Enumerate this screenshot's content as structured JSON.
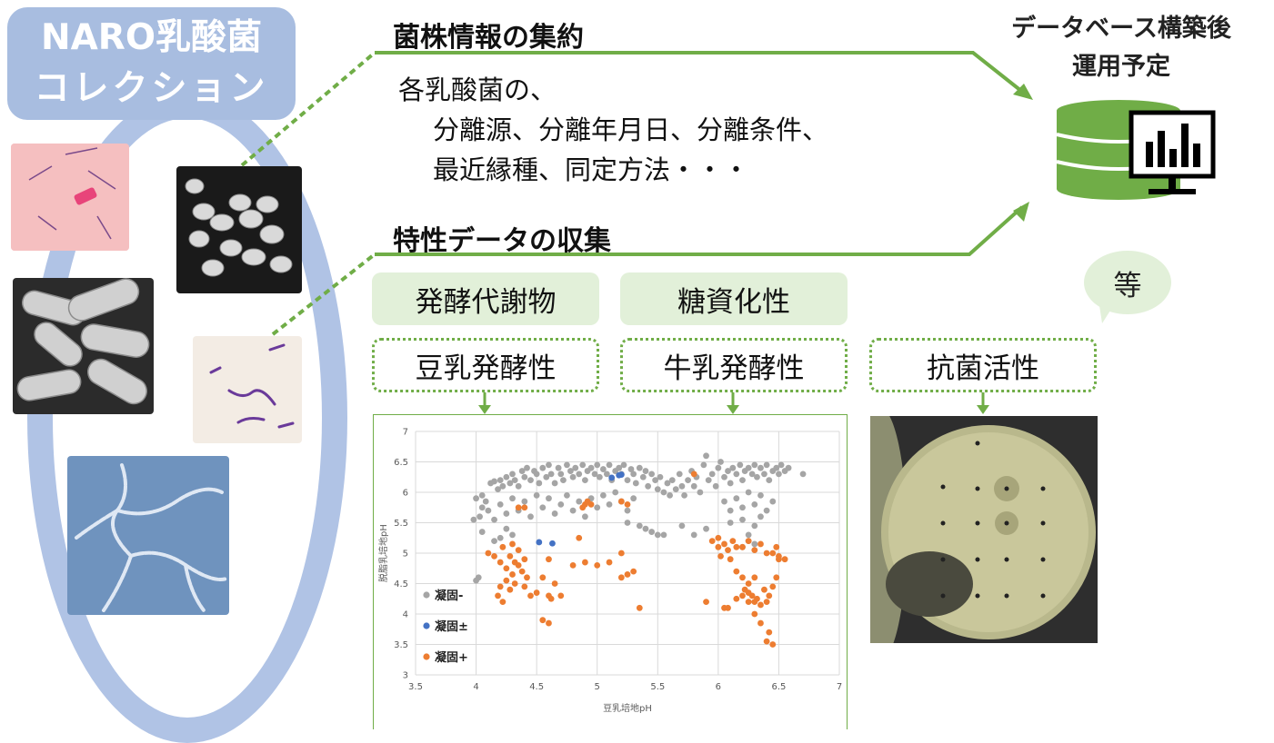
{
  "collection": {
    "line1": "NARO乳酸菌",
    "line2": "コレクション"
  },
  "strain_info": {
    "heading": "菌株情報の集約",
    "line1": "各乳酸菌の、",
    "line2": "分離源、分離年月日、分離条件、",
    "line3": "最近縁種、同定方法・・・"
  },
  "characteristics": {
    "heading": "特性データの収集",
    "solid_chips": [
      "発酵代謝物",
      "糖資化性"
    ],
    "dotted_chips": [
      "豆乳発酵性",
      "牛乳発酵性",
      "抗菌活性"
    ],
    "etc_bubble": "等"
  },
  "database": {
    "line1": "データベース構築後",
    "line2": "運用予定"
  },
  "colors": {
    "green": "#70ad47",
    "light_green": "#e2f0d9",
    "blue_band": "#a8bde0",
    "gray_series": "#a5a5a5",
    "blue_series": "#4472c4",
    "orange_series": "#ed7d31"
  },
  "chart_data": {
    "type": "scatter",
    "xlabel": "豆乳培地pH",
    "ylabel": "脱脂乳培地pH",
    "xlim": [
      3.5,
      7
    ],
    "ylim": [
      3,
      7
    ],
    "x_ticks": [
      "3.5",
      "4",
      "4.5",
      "5",
      "5.5",
      "6",
      "6.5",
      "7"
    ],
    "y_ticks": [
      "3",
      "3.5",
      "4",
      "4.5",
      "5",
      "5.5",
      "6",
      "6.5",
      "7"
    ],
    "grid": true,
    "legend_position": "left",
    "series": [
      {
        "name": "凝固-",
        "color": "#a5a5a5",
        "points": [
          [
            4.0,
            4.55
          ],
          [
            4.02,
            4.6
          ],
          [
            4.0,
            5.9
          ],
          [
            4.03,
            5.6
          ],
          [
            4.05,
            5.75
          ],
          [
            3.98,
            5.55
          ],
          [
            4.05,
            5.95
          ],
          [
            4.08,
            5.85
          ],
          [
            4.12,
            6.15
          ],
          [
            4.15,
            6.18
          ],
          [
            4.18,
            6.05
          ],
          [
            4.2,
            6.2
          ],
          [
            4.22,
            6.1
          ],
          [
            4.25,
            6.25
          ],
          [
            4.28,
            6.15
          ],
          [
            4.3,
            6.3
          ],
          [
            4.32,
            6.2
          ],
          [
            4.35,
            6.1
          ],
          [
            4.38,
            6.35
          ],
          [
            4.4,
            6.25
          ],
          [
            4.42,
            6.4
          ],
          [
            4.45,
            6.2
          ],
          [
            4.48,
            6.35
          ],
          [
            4.5,
            6.3
          ],
          [
            4.52,
            6.15
          ],
          [
            4.55,
            6.4
          ],
          [
            4.58,
            6.25
          ],
          [
            4.6,
            6.45
          ],
          [
            4.62,
            6.3
          ],
          [
            4.65,
            6.15
          ],
          [
            4.68,
            6.4
          ],
          [
            4.7,
            6.3
          ],
          [
            4.72,
            6.2
          ],
          [
            4.75,
            6.45
          ],
          [
            4.78,
            6.35
          ],
          [
            4.8,
            6.25
          ],
          [
            4.82,
            6.4
          ],
          [
            4.85,
            6.3
          ],
          [
            4.88,
            6.45
          ],
          [
            4.9,
            6.2
          ],
          [
            4.92,
            6.35
          ],
          [
            4.95,
            6.4
          ],
          [
            4.98,
            6.3
          ],
          [
            5.0,
            6.45
          ],
          [
            5.02,
            6.25
          ],
          [
            5.05,
            6.38
          ],
          [
            5.08,
            6.3
          ],
          [
            5.1,
            6.45
          ],
          [
            5.12,
            6.2
          ],
          [
            5.15,
            6.35
          ],
          [
            5.18,
            6.4
          ],
          [
            5.2,
            6.3
          ],
          [
            5.22,
            6.45
          ],
          [
            5.25,
            6.2
          ],
          [
            5.28,
            6.38
          ],
          [
            5.3,
            6.3
          ],
          [
            5.32,
            6.15
          ],
          [
            5.35,
            6.4
          ],
          [
            5.38,
            6.25
          ],
          [
            5.4,
            6.35
          ],
          [
            5.42,
            6.1
          ],
          [
            5.45,
            6.3
          ],
          [
            5.48,
            6.2
          ],
          [
            5.5,
            6.05
          ],
          [
            5.52,
            6.25
          ],
          [
            5.55,
            6.0
          ],
          [
            5.58,
            6.15
          ],
          [
            5.6,
            5.95
          ],
          [
            5.62,
            6.2
          ],
          [
            5.65,
            6.05
          ],
          [
            5.68,
            6.3
          ],
          [
            5.7,
            6.1
          ],
          [
            5.72,
            5.95
          ],
          [
            5.75,
            6.2
          ],
          [
            5.78,
            6.35
          ],
          [
            5.8,
            6.1
          ],
          [
            5.82,
            6.25
          ],
          [
            5.85,
            6.0
          ],
          [
            5.88,
            6.45
          ],
          [
            5.9,
            6.6
          ],
          [
            5.92,
            6.2
          ],
          [
            5.95,
            6.3
          ],
          [
            5.98,
            6.1
          ],
          [
            6.0,
            6.4
          ],
          [
            6.02,
            6.5
          ],
          [
            6.05,
            6.25
          ],
          [
            6.08,
            6.35
          ],
          [
            6.1,
            6.15
          ],
          [
            6.12,
            6.4
          ],
          [
            6.15,
            6.3
          ],
          [
            6.18,
            6.45
          ],
          [
            6.2,
            6.2
          ],
          [
            6.22,
            6.35
          ],
          [
            6.25,
            6.4
          ],
          [
            6.28,
            6.3
          ],
          [
            6.3,
            6.45
          ],
          [
            6.32,
            6.25
          ],
          [
            6.35,
            6.4
          ],
          [
            6.38,
            6.3
          ],
          [
            6.4,
            6.45
          ],
          [
            6.42,
            6.2
          ],
          [
            6.45,
            6.35
          ],
          [
            6.48,
            6.4
          ],
          [
            6.5,
            6.3
          ],
          [
            6.52,
            6.45
          ],
          [
            6.55,
            6.35
          ],
          [
            6.58,
            6.4
          ],
          [
            6.7,
            6.3
          ],
          [
            4.1,
            5.7
          ],
          [
            4.15,
            5.55
          ],
          [
            4.2,
            5.8
          ],
          [
            4.25,
            5.65
          ],
          [
            4.3,
            5.9
          ],
          [
            4.35,
            5.7
          ],
          [
            4.4,
            5.85
          ],
          [
            4.45,
            5.6
          ],
          [
            4.5,
            5.95
          ],
          [
            4.55,
            5.75
          ],
          [
            4.6,
            5.9
          ],
          [
            4.65,
            5.65
          ],
          [
            4.7,
            5.8
          ],
          [
            4.75,
            5.95
          ],
          [
            4.8,
            5.7
          ],
          [
            4.85,
            5.85
          ],
          [
            4.9,
            5.6
          ],
          [
            4.95,
            5.9
          ],
          [
            5.0,
            5.75
          ],
          [
            5.05,
            5.95
          ],
          [
            5.1,
            5.8
          ],
          [
            5.15,
            6.0
          ],
          [
            5.2,
            5.85
          ],
          [
            5.25,
            5.7
          ],
          [
            5.3,
            5.9
          ],
          [
            5.35,
            5.45
          ],
          [
            5.4,
            5.4
          ],
          [
            5.45,
            5.35
          ],
          [
            5.5,
            5.3
          ],
          [
            5.55,
            5.3
          ],
          [
            5.25,
            5.5
          ],
          [
            5.7,
            5.45
          ],
          [
            5.8,
            5.3
          ],
          [
            5.9,
            5.4
          ],
          [
            6.05,
            5.85
          ],
          [
            6.1,
            5.7
          ],
          [
            6.15,
            5.9
          ],
          [
            6.2,
            5.75
          ],
          [
            6.25,
            6.0
          ],
          [
            6.3,
            5.8
          ],
          [
            6.35,
            5.95
          ],
          [
            6.4,
            5.7
          ],
          [
            6.45,
            5.85
          ],
          [
            6.2,
            5.55
          ],
          [
            6.25,
            5.3
          ],
          [
            6.3,
            5.45
          ],
          [
            6.35,
            5.6
          ],
          [
            6.1,
            5.5
          ],
          [
            6.2,
            5.1
          ],
          [
            6.25,
            5.2
          ],
          [
            6.3,
            5.15
          ],
          [
            4.2,
            5.25
          ],
          [
            4.25,
            5.4
          ],
          [
            4.3,
            5.3
          ],
          [
            4.15,
            5.2
          ],
          [
            4.05,
            5.35
          ]
        ]
      },
      {
        "name": "凝固±",
        "color": "#4472c4",
        "points": [
          [
            4.52,
            5.18
          ],
          [
            4.63,
            5.16
          ],
          [
            5.12,
            6.24
          ],
          [
            5.18,
            6.28
          ],
          [
            5.2,
            6.29
          ]
        ]
      },
      {
        "name": "凝固+",
        "color": "#ed7d31",
        "points": [
          [
            4.1,
            5.0
          ],
          [
            4.15,
            4.95
          ],
          [
            4.2,
            4.85
          ],
          [
            4.22,
            5.1
          ],
          [
            4.25,
            4.75
          ],
          [
            4.28,
            4.95
          ],
          [
            4.3,
            4.65
          ],
          [
            4.32,
            4.85
          ],
          [
            4.35,
            5.05
          ],
          [
            4.38,
            4.7
          ],
          [
            4.4,
            4.9
          ],
          [
            4.42,
            4.6
          ],
          [
            4.3,
            5.15
          ],
          [
            4.32,
            4.5
          ],
          [
            4.35,
            4.8
          ],
          [
            4.28,
            4.4
          ],
          [
            4.25,
            4.55
          ],
          [
            4.4,
            4.45
          ],
          [
            4.2,
            4.45
          ],
          [
            4.18,
            4.3
          ],
          [
            4.22,
            4.2
          ],
          [
            4.45,
            4.3
          ],
          [
            4.5,
            4.35
          ],
          [
            4.55,
            4.6
          ],
          [
            4.6,
            4.9
          ],
          [
            4.6,
            4.3
          ],
          [
            4.62,
            4.25
          ],
          [
            4.65,
            4.5
          ],
          [
            4.7,
            4.3
          ],
          [
            4.55,
            3.9
          ],
          [
            4.6,
            3.85
          ],
          [
            4.8,
            4.8
          ],
          [
            4.85,
            5.25
          ],
          [
            4.9,
            4.85
          ],
          [
            5.0,
            4.8
          ],
          [
            5.2,
            5.0
          ],
          [
            5.25,
            4.65
          ],
          [
            5.3,
            4.7
          ],
          [
            5.35,
            4.1
          ],
          [
            5.1,
            4.85
          ],
          [
            5.2,
            4.6
          ],
          [
            4.9,
            5.8
          ],
          [
            4.92,
            5.85
          ],
          [
            4.88,
            5.75
          ],
          [
            4.95,
            5.8
          ],
          [
            5.2,
            5.85
          ],
          [
            5.25,
            5.8
          ],
          [
            4.35,
            5.75
          ],
          [
            4.4,
            5.75
          ],
          [
            5.8,
            6.3
          ],
          [
            5.9,
            4.2
          ],
          [
            5.95,
            5.2
          ],
          [
            6.0,
            5.1
          ],
          [
            6.02,
            4.95
          ],
          [
            6.05,
            5.15
          ],
          [
            6.08,
            5.05
          ],
          [
            6.1,
            4.9
          ],
          [
            6.12,
            5.2
          ],
          [
            6.0,
            5.25
          ],
          [
            6.15,
            5.1
          ],
          [
            6.05,
            4.1
          ],
          [
            6.08,
            4.1
          ],
          [
            6.15,
            4.7
          ],
          [
            6.2,
            4.6
          ],
          [
            6.22,
            4.4
          ],
          [
            6.25,
            4.2
          ],
          [
            6.25,
            4.5
          ],
          [
            6.28,
            4.3
          ],
          [
            6.3,
            4.6
          ],
          [
            6.32,
            4.25
          ],
          [
            6.35,
            4.15
          ],
          [
            6.3,
            4.0
          ],
          [
            6.35,
            3.85
          ],
          [
            6.38,
            4.4
          ],
          [
            6.4,
            4.2
          ],
          [
            6.42,
            3.7
          ],
          [
            6.45,
            3.5
          ],
          [
            6.4,
            3.55
          ],
          [
            6.42,
            4.3
          ],
          [
            6.45,
            4.45
          ],
          [
            6.48,
            4.6
          ],
          [
            6.5,
            4.9
          ],
          [
            6.4,
            5.0
          ],
          [
            6.35,
            5.15
          ],
          [
            6.3,
            5.05
          ],
          [
            6.25,
            5.2
          ],
          [
            6.2,
            5.1
          ],
          [
            6.45,
            5.0
          ],
          [
            6.5,
            4.95
          ],
          [
            6.55,
            4.9
          ],
          [
            6.48,
            5.1
          ],
          [
            6.2,
            4.3
          ],
          [
            6.25,
            4.35
          ],
          [
            6.3,
            4.2
          ],
          [
            6.15,
            4.25
          ]
        ]
      }
    ]
  }
}
